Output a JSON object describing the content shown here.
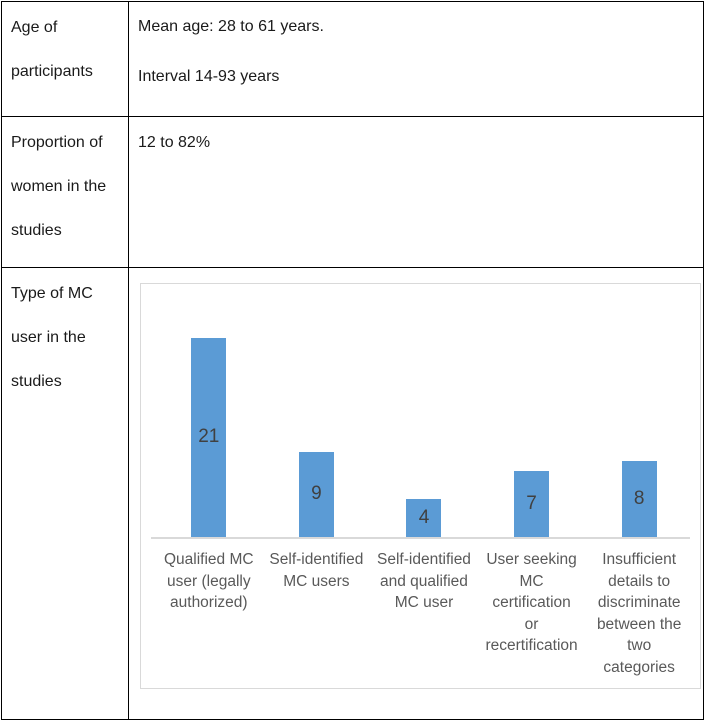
{
  "table": {
    "rows": [
      {
        "label": "Age of participants",
        "label_lines": [
          "Age of",
          "participants"
        ],
        "value": "Mean age: 28 to 61 years. Interval 14-93 years",
        "value_lines": [
          "Mean age: 28 to 61 years.",
          "Interval 14-93 years"
        ]
      },
      {
        "label": "Proportion of women in the studies",
        "label_lines": [
          "Proportion of",
          "women in the",
          "studies"
        ],
        "value": "12 to 82%",
        "value_lines": [
          "12 to 82%"
        ]
      },
      {
        "label": "Type of MC user in the studies",
        "label_lines": [
          "Type of MC",
          "user in the",
          "studies"
        ]
      }
    ]
  },
  "chart_data": {
    "type": "bar",
    "title": "",
    "xlabel": "",
    "ylabel": "",
    "categories": [
      "Qualified MC user (legally authorized)",
      "Self-identified MC users",
      "Self-identified and qualified MC user",
      "User seeking MC certification or recertification",
      "Insufficient details to discriminate between the two categories"
    ],
    "tick_label_lines": [
      [
        "Qualified MC",
        "user (legally",
        "authorized)"
      ],
      [
        "Self-identified",
        "MC users"
      ],
      [
        "Self-identified",
        "and qualified",
        "MC user"
      ],
      [
        "User seeking",
        "MC",
        "certification",
        "or",
        "recertification"
      ],
      [
        "Insufficient",
        "details to",
        "discriminate",
        "between the",
        "two",
        "categories"
      ]
    ],
    "values": [
      21,
      9,
      4,
      7,
      8
    ],
    "value_labels": [
      "21",
      "9",
      "4",
      "7",
      "8"
    ],
    "ylim": [
      0,
      22
    ],
    "grid": false,
    "legend": false,
    "colors": {
      "bar": "#5b9bd5",
      "value_label": "#404040",
      "category_label": "#595959",
      "axis_line": "#d9d9d9",
      "chart_border": "#d9d9d9"
    }
  }
}
